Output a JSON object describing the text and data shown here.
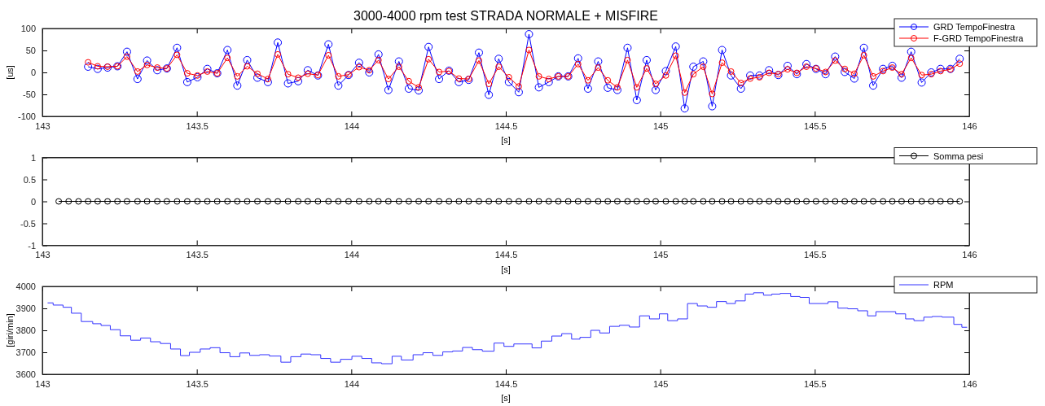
{
  "chart_data": [
    {
      "type": "line",
      "title": "3000-4000 rpm  test STRADA NORMALE + MISFIRE",
      "xlabel": "[s]",
      "ylabel": "[us]",
      "marker": "circle",
      "legend": "top right",
      "xlim": [
        143,
        146
      ],
      "xticks": [
        143,
        143.5,
        144,
        144.5,
        145,
        145.5,
        146
      ],
      "ylim": [
        -100,
        100
      ],
      "yticks": [
        -100,
        -50,
        0,
        50,
        100
      ],
      "x": [
        143.148,
        143.179,
        143.211,
        143.243,
        143.274,
        143.308,
        143.339,
        143.372,
        143.403,
        143.436,
        143.469,
        143.502,
        143.534,
        143.566,
        143.599,
        143.631,
        143.663,
        143.696,
        143.73,
        143.762,
        143.795,
        143.828,
        143.859,
        143.892,
        143.926,
        143.958,
        143.991,
        144.025,
        144.058,
        144.088,
        144.12,
        144.154,
        144.186,
        144.218,
        144.25,
        144.284,
        144.316,
        144.348,
        144.38,
        144.413,
        144.445,
        144.477,
        144.51,
        144.542,
        144.575,
        144.607,
        144.639,
        144.67,
        144.702,
        144.734,
        144.766,
        144.799,
        144.83,
        144.861,
        144.894,
        144.924,
        144.956,
        144.985,
        145.018,
        145.05,
        145.079,
        145.107,
        145.139,
        145.168,
        145.2,
        145.229,
        145.261,
        145.291,
        145.321,
        145.352,
        145.382,
        145.412,
        145.442,
        145.473,
        145.504,
        145.535,
        145.566,
        145.597,
        145.628,
        145.659,
        145.689,
        145.721,
        145.751,
        145.781,
        145.812,
        145.846,
        145.877,
        145.907,
        145.939,
        145.969
      ],
      "series": [
        {
          "name": "GRD TempoFinestra",
          "color": "#0000ff",
          "values": [
            13,
            8,
            11,
            14,
            47,
            -15,
            27,
            5,
            9,
            56,
            -22,
            -11,
            8,
            -2,
            51,
            -30,
            28,
            -12,
            -22,
            68,
            -25,
            -20,
            5,
            -7,
            64,
            -30,
            -6,
            22,
            0,
            41,
            -40,
            25,
            -37,
            -41,
            58,
            -15,
            4,
            -22,
            -17,
            45,
            -51,
            31,
            -22,
            -45,
            87,
            -34,
            -22,
            -9,
            -9,
            32,
            -37,
            25,
            -35,
            -40,
            56,
            -63,
            28,
            -40,
            3,
            59,
            -82,
            13,
            25,
            -77,
            51,
            -7,
            -37,
            -7,
            -7,
            5,
            -6,
            15,
            -4,
            19,
            8,
            -4,
            36,
            1,
            -14,
            56,
            -30,
            8,
            15,
            -12,
            47,
            -23,
            0,
            8,
            8,
            31
          ]
        },
        {
          "name": "F-GRD TempoFinestra",
          "color": "#ff0000",
          "values": [
            23,
            14,
            13,
            14,
            36,
            2,
            17,
            11,
            9,
            40,
            -2,
            -7,
            2,
            -2,
            33,
            -9,
            14,
            -3,
            -15,
            41,
            -4,
            -12,
            -3,
            -6,
            39,
            -9,
            -5,
            12,
            5,
            28,
            -15,
            13,
            -20,
            -34,
            30,
            1,
            3,
            -14,
            -15,
            27,
            -26,
            13,
            -11,
            -32,
            51,
            -9,
            -15,
            -9,
            -9,
            19,
            -18,
            11,
            -18,
            -34,
            28,
            -34,
            9,
            -26,
            -7,
            38,
            -46,
            -4,
            13,
            -49,
            22,
            2,
            -24,
            -14,
            -11,
            -1,
            -4,
            7,
            -1,
            13,
            9,
            1,
            27,
            8,
            -3,
            39,
            -9,
            3,
            11,
            -4,
            33,
            -6,
            -4,
            3,
            7,
            20
          ]
        }
      ]
    },
    {
      "type": "line",
      "xlabel": "[s]",
      "marker": "circle",
      "legend": "top right",
      "xlim": [
        143,
        146
      ],
      "xticks": [
        143,
        143.5,
        144,
        144.5,
        145,
        145.5,
        146
      ],
      "ylim": [
        -1,
        1
      ],
      "yticks": [
        -1,
        -0.5,
        0,
        0.5,
        1
      ],
      "series": [
        {
          "name": "Somma pesi",
          "color": "#000000",
          "x": [
            143.053,
            143.085,
            143.117,
            143.148,
            143.179,
            143.211,
            143.243,
            143.274,
            143.308,
            143.339,
            143.372,
            143.403,
            143.436,
            143.469,
            143.502,
            143.534,
            143.566,
            143.599,
            143.631,
            143.663,
            143.696,
            143.73,
            143.762,
            143.795,
            143.828,
            143.859,
            143.892,
            143.926,
            143.958,
            143.991,
            144.025,
            144.058,
            144.088,
            144.12,
            144.154,
            144.186,
            144.218,
            144.25,
            144.284,
            144.316,
            144.348,
            144.38,
            144.413,
            144.445,
            144.477,
            144.51,
            144.542,
            144.575,
            144.607,
            144.639,
            144.67,
            144.702,
            144.734,
            144.766,
            144.799,
            144.83,
            144.861,
            144.894,
            144.924,
            144.956,
            144.985,
            145.018,
            145.05,
            145.079,
            145.107,
            145.139,
            145.168,
            145.2,
            145.229,
            145.261,
            145.291,
            145.321,
            145.352,
            145.382,
            145.412,
            145.442,
            145.473,
            145.504,
            145.535,
            145.566,
            145.597,
            145.628,
            145.659,
            145.689,
            145.721,
            145.751,
            145.781,
            145.812,
            145.846,
            145.877,
            145.907,
            145.939,
            145.969
          ],
          "values": [
            0,
            0,
            0,
            0,
            0,
            0,
            0,
            0,
            0,
            0,
            0,
            0,
            0,
            0,
            0,
            0,
            0,
            0,
            0,
            0,
            0,
            0,
            0,
            0,
            0,
            0,
            0,
            0,
            0,
            0,
            0,
            0,
            0,
            0,
            0,
            0,
            0,
            0,
            0,
            0,
            0,
            0,
            0,
            0,
            0,
            0,
            0,
            0,
            0,
            0,
            0,
            0,
            0,
            0,
            0,
            0,
            0,
            0,
            0,
            0,
            0,
            0,
            0,
            0,
            0,
            0,
            0,
            0,
            0,
            0,
            0,
            0,
            0,
            0,
            0,
            0,
            0,
            0,
            0,
            0,
            0,
            0,
            0,
            0,
            0,
            0,
            0,
            0,
            0,
            0,
            0,
            0,
            0
          ]
        }
      ]
    },
    {
      "type": "step",
      "xlabel": "[s]",
      "ylabel": "[giri/min]",
      "legend": "top right",
      "xlim": [
        143,
        146
      ],
      "xticks": [
        143,
        143.5,
        144,
        144.5,
        145,
        145.5,
        146
      ],
      "ylim": [
        3600,
        4000
      ],
      "yticks": [
        3600,
        3700,
        3800,
        3900,
        4000
      ],
      "series": [
        {
          "name": "RPM",
          "color": "#3333ff",
          "x": [
            143.017,
            143.035,
            143.067,
            143.094,
            143.126,
            143.163,
            143.19,
            143.22,
            143.252,
            143.286,
            143.318,
            143.35,
            143.382,
            143.415,
            143.447,
            143.476,
            143.511,
            143.543,
            143.575,
            143.607,
            143.639,
            143.671,
            143.703,
            143.735,
            143.772,
            143.804,
            143.837,
            143.869,
            143.901,
            143.933,
            143.965,
            144.002,
            144.034,
            144.066,
            144.098,
            144.132,
            144.162,
            144.2,
            144.232,
            144.264,
            144.296,
            144.328,
            144.36,
            144.392,
            144.424,
            144.462,
            144.494,
            144.526,
            144.585,
            144.615,
            144.649,
            144.681,
            144.713,
            144.74,
            144.775,
            144.804,
            144.836,
            144.868,
            144.9,
            144.933,
            144.965,
            144.997,
            145.024,
            145.056,
            145.088,
            145.12,
            145.152,
            145.182,
            145.214,
            145.243,
            145.275,
            145.302,
            145.334,
            145.361,
            145.388,
            145.422,
            145.452,
            145.482,
            145.543,
            145.575,
            145.607,
            145.639,
            145.671,
            145.698,
            145.762,
            145.794,
            145.821,
            145.853,
            145.88,
            145.912,
            145.95,
            145.976,
            145.993
          ],
          "values": [
            3925,
            3915,
            3905,
            3878,
            3840,
            3830,
            3822,
            3803,
            3775,
            3755,
            3765,
            3748,
            3740,
            3715,
            3685,
            3700,
            3715,
            3721,
            3698,
            3680,
            3697,
            3686,
            3689,
            3683,
            3655,
            3680,
            3692,
            3689,
            3672,
            3655,
            3668,
            3682,
            3672,
            3652,
            3648,
            3682,
            3665,
            3689,
            3698,
            3686,
            3702,
            3706,
            3722,
            3712,
            3705,
            3742,
            3727,
            3738,
            3720,
            3751,
            3774,
            3785,
            3760,
            3768,
            3800,
            3788,
            3818,
            3823,
            3815,
            3866,
            3852,
            3875,
            3844,
            3852,
            3922,
            3911,
            3905,
            3931,
            3922,
            3934,
            3965,
            3971,
            3960,
            3965,
            3968,
            3954,
            3950,
            3922,
            3930,
            3901,
            3898,
            3889,
            3866,
            3885,
            3875,
            3852,
            3844,
            3860,
            3863,
            3860,
            3827,
            3814,
            3814
          ]
        }
      ]
    }
  ]
}
